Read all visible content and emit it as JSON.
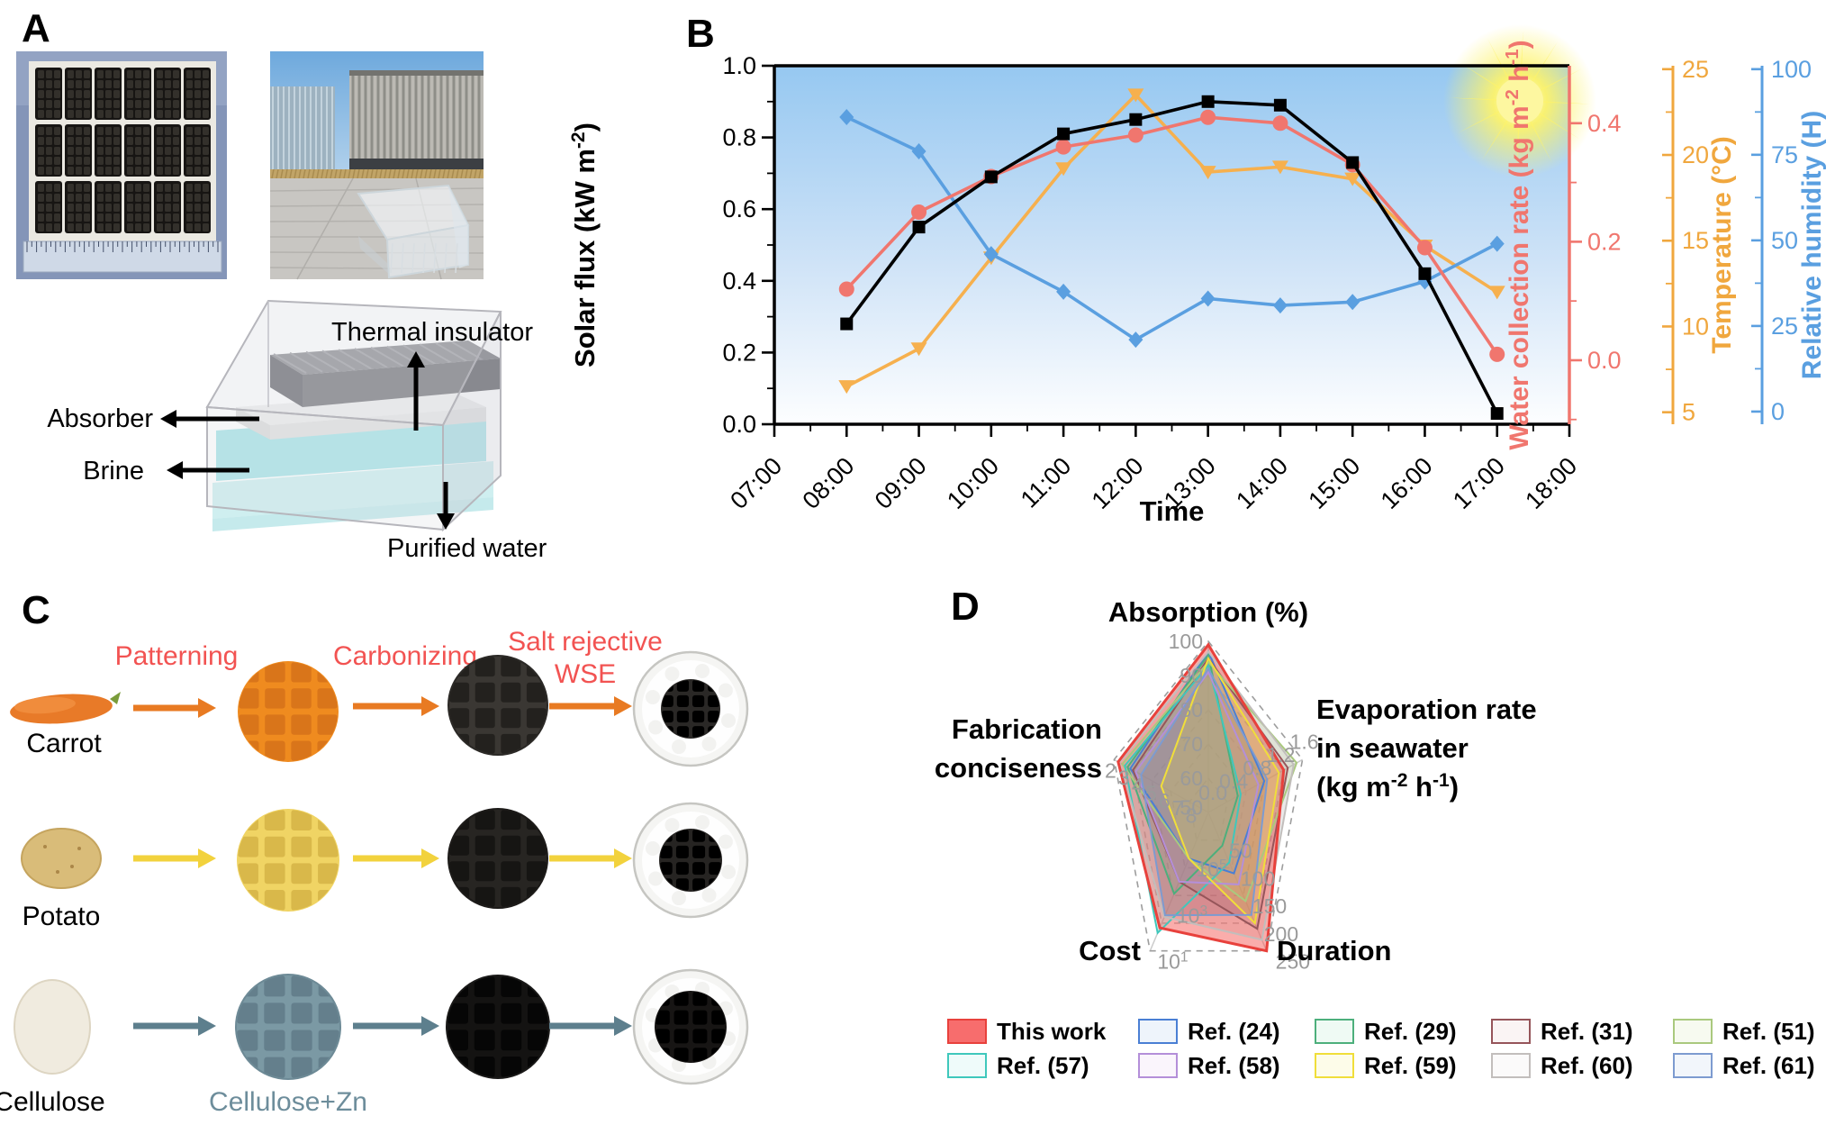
{
  "panels": {
    "a": {
      "label": "A",
      "photos": {
        "left": "absorber-array-photo",
        "right": "outdoor-test-photo"
      },
      "schematic_labels": {
        "thermal_insulator": "Thermal insulator",
        "absorber": "Absorber",
        "brine": "Brine",
        "purified_water": "Purified water"
      }
    },
    "b": {
      "label": "B",
      "decoration": "sun-icon"
    },
    "c": {
      "label": "C",
      "step_labels": [
        "Patterning",
        "Carbonizing",
        "Salt rejective WSE"
      ],
      "rows": [
        {
          "material": "Carrot",
          "patterned_label": ""
        },
        {
          "material": "Potato",
          "patterned_label": ""
        },
        {
          "material": "Cellulose",
          "patterned_label": "Cellulose+Zn"
        }
      ]
    },
    "d": {
      "label": "D"
    }
  },
  "chart_data": [
    {
      "type": "line",
      "xlabel": "Time",
      "x_axis_ticks": [
        "07:00",
        "08:00",
        "09:00",
        "10:00",
        "11:00",
        "12:00",
        "13:00",
        "14:00",
        "15:00",
        "16:00",
        "17:00",
        "18:00"
      ],
      "x": [
        "08:00",
        "09:00",
        "10:00",
        "11:00",
        "12:00",
        "13:00",
        "14:00",
        "15:00",
        "16:00",
        "17:00"
      ],
      "axes": [
        {
          "id": "solar",
          "label": "Solar flux (kW m⁻²)",
          "color": "#000000",
          "side": "left",
          "range": [
            0.0,
            1.0
          ],
          "ticks": [
            0.0,
            0.2,
            0.4,
            0.6,
            0.8,
            1.0
          ],
          "tick_labels": [
            "0.0",
            "0.2",
            "0.4",
            "0.6",
            "0.8",
            "1.0"
          ]
        },
        {
          "id": "water",
          "label": "Water collection rate (kg m⁻² h⁻¹)",
          "color": "#f0766e",
          "side": "right",
          "range": [
            -0.108,
            0.497
          ],
          "ticks": [
            0.0,
            0.2,
            0.4
          ],
          "tick_labels": [
            "0.0",
            "0.2",
            "0.4"
          ]
        },
        {
          "id": "temp",
          "label": "Temperature (°C)",
          "color": "#f0a73e",
          "side": "right",
          "range": [
            4.3,
            25.2
          ],
          "ticks": [
            5,
            10,
            15,
            20,
            25
          ],
          "tick_labels": [
            "5",
            "10",
            "15",
            "20",
            "25"
          ]
        },
        {
          "id": "rh",
          "label": "Relative humidity (H)",
          "color": "#5a9fe0",
          "side": "right",
          "range": [
            -3.7,
            101.0
          ],
          "ticks": [
            0,
            25,
            50,
            75,
            100
          ],
          "tick_labels": [
            "0",
            "25",
            "50",
            "75",
            "100"
          ]
        }
      ],
      "series": [
        {
          "name": "Solar flux",
          "axis": "solar",
          "marker": "square",
          "color": "#000000",
          "values": [
            0.28,
            0.55,
            0.69,
            0.81,
            0.85,
            0.9,
            0.89,
            0.73,
            0.42,
            0.03
          ]
        },
        {
          "name": "Water collection rate",
          "axis": "water",
          "marker": "circle",
          "color": "#f0766e",
          "values": [
            0.12,
            0.25,
            0.31,
            0.36,
            0.38,
            0.41,
            0.4,
            0.33,
            0.19,
            0.01
          ]
        },
        {
          "name": "Temperature",
          "axis": "temp",
          "marker": "triangle-down",
          "color": "#f6b04e",
          "values": [
            6.5,
            8.7,
            14.0,
            19.2,
            23.5,
            19.0,
            19.3,
            18.6,
            14.7,
            12.0
          ]
        },
        {
          "name": "Relative humidity",
          "axis": "rh",
          "marker": "diamond",
          "color": "#5a9fe0",
          "values": [
            86,
            76,
            46,
            35,
            21,
            33,
            31,
            32,
            38,
            49
          ]
        }
      ]
    },
    {
      "type": "radar",
      "axes": [
        {
          "id": "absorption",
          "label": "Absorption (%)",
          "min": 50,
          "max": 100,
          "ticks": [
            100,
            90,
            80,
            70,
            60,
            50
          ]
        },
        {
          "id": "evaporation",
          "label": "Evaporation rate in seawater (kg m⁻² h⁻¹)",
          "label_lines": [
            "Evaporation rate",
            "in seawater",
            "(kg m⁻² h⁻¹)"
          ],
          "min": 0.0,
          "max": 1.6,
          "ticks": [
            1.6,
            1.2,
            0.8,
            0.4,
            0.0
          ]
        },
        {
          "id": "duration",
          "label": "Duration",
          "min": 0,
          "max": 250,
          "ticks": [
            250,
            200,
            150,
            100,
            50
          ]
        },
        {
          "id": "cost",
          "label": "Cost",
          "scale": "log10",
          "center_value": 10000000,
          "outer_value": 10,
          "tick_labels": [
            "10⁵",
            "10³",
            "10¹"
          ],
          "tick_t": [
            0.3333,
            0.6667,
            1.0
          ]
        },
        {
          "id": "fabrication",
          "label": "Fabrication conciseness",
          "label_lines": [
            "Fabrication",
            "conciseness"
          ],
          "min": 9,
          "max": 2,
          "ticks": [
            2,
            3,
            4,
            5,
            6,
            7,
            8
          ]
        }
      ],
      "series": [
        {
          "name": "This work",
          "stroke": "#e8413c",
          "fill": "rgba(246,92,88,0.50)",
          "legend_fill": "#f76d6d",
          "values": {
            "absorption": 99,
            "evaporation": 1.28,
            "duration": 250,
            "cost": 100,
            "fabrication": 2.3
          }
        },
        {
          "name": "Ref. (24)",
          "stroke": "#4a7fd4",
          "fill": "rgba(74,127,212,0.14)",
          "legend_fill": "#eef4fb",
          "values": {
            "absorption": 97,
            "evaporation": 0.95,
            "duration": 110,
            "cost": 100000,
            "fabrication": 3.2
          }
        },
        {
          "name": "Ref. (29)",
          "stroke": "#4daf7c",
          "fill": "rgba(77,175,124,0.12)",
          "legend_fill": "#effaf4",
          "values": {
            "absorption": 96,
            "evaporation": 0.5,
            "duration": 60,
            "cost": 3000,
            "fabrication": 3.0
          }
        },
        {
          "name": "Ref. (31)",
          "stroke": "#96555a",
          "fill": "rgba(150,85,90,0.12)",
          "legend_fill": "#faf4f4",
          "values": {
            "absorption": 95,
            "evaporation": 1.35,
            "duration": 210,
            "cost": 10000,
            "fabrication": 3.4
          }
        },
        {
          "name": "Ref. (51)",
          "stroke": "#aac97e",
          "fill": "rgba(170,201,126,0.16)",
          "legend_fill": "#f7faf0",
          "values": {
            "absorption": 94,
            "evaporation": 1.5,
            "duration": 160,
            "cost": 100000,
            "fabrication": 2.6
          }
        },
        {
          "name": "Ref. (57)",
          "stroke": "#3fc8bc",
          "fill": "rgba(63,200,188,0.12)",
          "legend_fill": "#effbfa",
          "values": {
            "absorption": 93,
            "evaporation": 0.55,
            "duration": 90,
            "cost": 60,
            "fabrication": 2.8
          }
        },
        {
          "name": "Ref. (58)",
          "stroke": "#b48fd9",
          "fill": "rgba(180,143,217,0.14)",
          "legend_fill": "#faf5fc",
          "values": {
            "absorption": 91,
            "evaporation": 0.85,
            "duration": 130,
            "cost": 10000,
            "fabrication": 3.6
          }
        },
        {
          "name": "Ref. (59)",
          "stroke": "#f0de3a",
          "fill": "rgba(240,222,58,0.22)",
          "legend_fill": "#fdfce9",
          "values": {
            "absorption": 95,
            "evaporation": 1.2,
            "duration": 200,
            "cost": 100000,
            "fabrication": 5.5
          }
        },
        {
          "name": "Ref. (60)",
          "stroke": "#c2bebc",
          "fill": "rgba(170,165,162,0.25)",
          "legend_fill": "#fbfafa",
          "values": {
            "absorption": 97,
            "evaporation": 1.45,
            "duration": 230,
            "cost": 300,
            "fabrication": 2.4
          }
        },
        {
          "name": "Ref. (61)",
          "stroke": "#7d9bd0",
          "fill": "rgba(100,118,155,0.42)",
          "legend_fill": "#f2f6fb",
          "values": {
            "absorption": 92,
            "evaporation": 1.0,
            "duration": 185,
            "cost": 350,
            "fabrication": 4.0
          }
        }
      ]
    }
  ]
}
